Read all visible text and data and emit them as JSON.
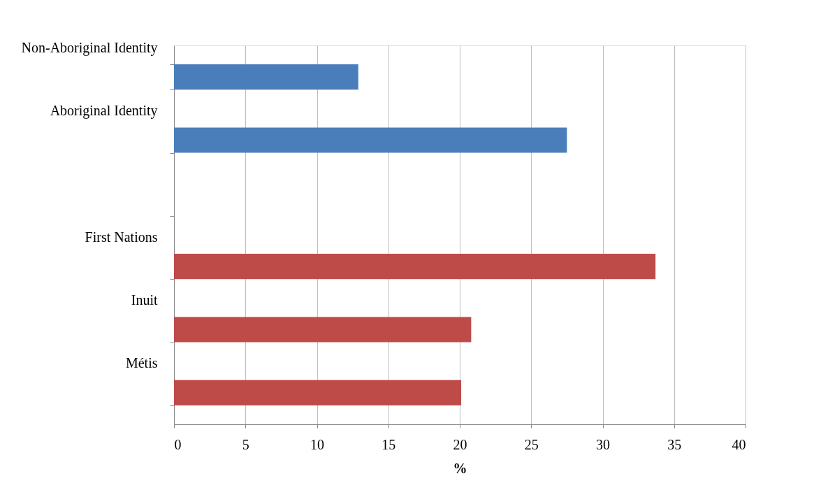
{
  "chart_data": {
    "type": "bar",
    "orientation": "horizontal",
    "xlabel": "%",
    "categories": [
      "Non-Aboriginal Identity",
      "Aboriginal Identity",
      null,
      "First Nations",
      "Inuit",
      "Métis"
    ],
    "values": [
      12.9,
      27.5,
      null,
      33.7,
      20.8,
      20.1
    ],
    "colors": [
      "#4a7ebb",
      "#4a7ebb",
      null,
      "#be4b48",
      "#be4b48",
      "#be4b48"
    ],
    "xlim": [
      0,
      40
    ],
    "xticks": [
      0,
      5,
      10,
      15,
      20,
      25,
      30,
      35,
      40
    ],
    "grid": "x"
  }
}
